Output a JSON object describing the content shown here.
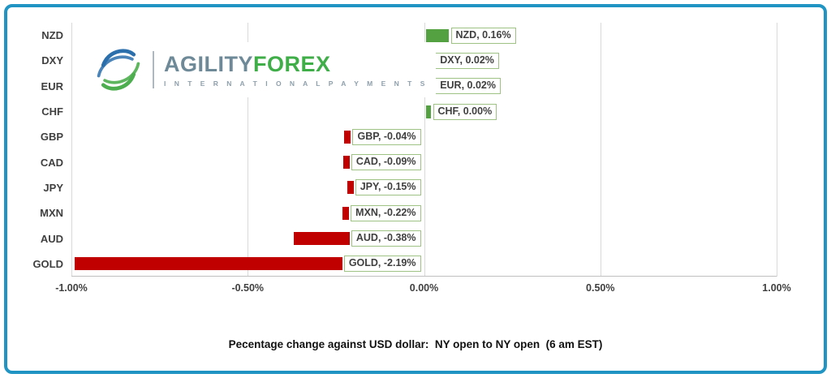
{
  "frame": {
    "border_color": "#2095C3"
  },
  "logo": {
    "brand_agility": "AGILITY",
    "brand_forex": "FOREX",
    "tagline": "I N T E R N A T I O N A L   P A Y M E N T S",
    "colors": {
      "globe_blue": "#2B6FAC",
      "globe_green": "#4CAE4E",
      "agility_text": "#6E8998",
      "forex_text": "#3FAE49",
      "tagline_text": "#8FA0AC"
    }
  },
  "caption": "Pecentage change against USD dollar:  NY open to NY open  (6 am EST)",
  "chart_data": {
    "type": "bar",
    "orientation": "horizontal",
    "title": "Pecentage change against USD dollar:  NY open to NY open  (6 am EST)",
    "categories": [
      "NZD",
      "DXY",
      "EUR",
      "CHF",
      "GBP",
      "CAD",
      "JPY",
      "MXN",
      "AUD",
      "GOLD"
    ],
    "values": [
      0.16,
      0.02,
      0.02,
      0.0,
      -0.04,
      -0.09,
      -0.15,
      -0.22,
      -0.38,
      -2.19
    ],
    "labels": [
      "NZD, 0.16%",
      "DXY, 0.02%",
      "EUR, 0.02%",
      "CHF, 0.00%",
      "GBP, -0.04%",
      "CAD, -0.09%",
      "JPY, -0.15%",
      "MXN, -0.22%",
      "AUD, -0.38%",
      "GOLD, -2.19%"
    ],
    "xlim": [
      -1.0,
      1.0
    ],
    "x_ticks": [
      "-1.00%",
      "-0.50%",
      "0.00%",
      "0.50%",
      "1.00%"
    ],
    "grid": true,
    "legend": "none",
    "colors": {
      "positive": "#53A140",
      "negative": "#C00000",
      "label_border": "#9DC284",
      "grid_line": "#D9D9D9",
      "axis_text": "#404040"
    }
  }
}
